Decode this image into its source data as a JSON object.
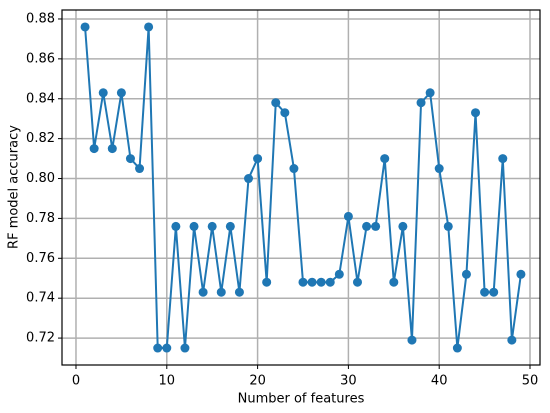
{
  "chart_data": {
    "type": "line",
    "x_label": "Number of features",
    "y_label": "RF model accuracy",
    "x": [
      1,
      2,
      3,
      4,
      5,
      6,
      7,
      8,
      9,
      10,
      11,
      12,
      13,
      14,
      15,
      16,
      17,
      18,
      19,
      20,
      21,
      22,
      23,
      24,
      25,
      26,
      27,
      28,
      29,
      30,
      31,
      32,
      33,
      34,
      35,
      36,
      37,
      38,
      39,
      40,
      41,
      42,
      43,
      44,
      45,
      46,
      47,
      48,
      49
    ],
    "series": [
      {
        "color": "#1f77b4",
        "values": [
          0.876,
          0.815,
          0.843,
          0.815,
          0.843,
          0.81,
          0.805,
          0.876,
          0.715,
          0.715,
          0.776,
          0.715,
          0.776,
          0.743,
          0.776,
          0.743,
          0.776,
          0.743,
          0.8,
          0.81,
          0.748,
          0.838,
          0.833,
          0.805,
          0.748,
          0.748,
          0.748,
          0.748,
          0.752,
          0.781,
          0.748,
          0.776,
          0.776,
          0.81,
          0.748,
          0.776,
          0.719,
          0.838,
          0.843,
          0.805,
          0.776,
          0.715,
          0.752,
          0.833,
          0.743,
          0.743,
          0.81,
          0.719,
          0.752
        ]
      }
    ],
    "xlim": [
      -1.54,
      51.1
    ],
    "ylim": [
      0.7065,
      0.8845
    ],
    "xticks": [
      0,
      10,
      20,
      30,
      40,
      50
    ],
    "yticks": [
      0.72,
      0.74,
      0.76,
      0.78,
      {
        "value": 0.8,
        "label": "0.80"
      },
      0.82,
      0.84,
      0.86,
      0.88
    ],
    "grid": true
  }
}
